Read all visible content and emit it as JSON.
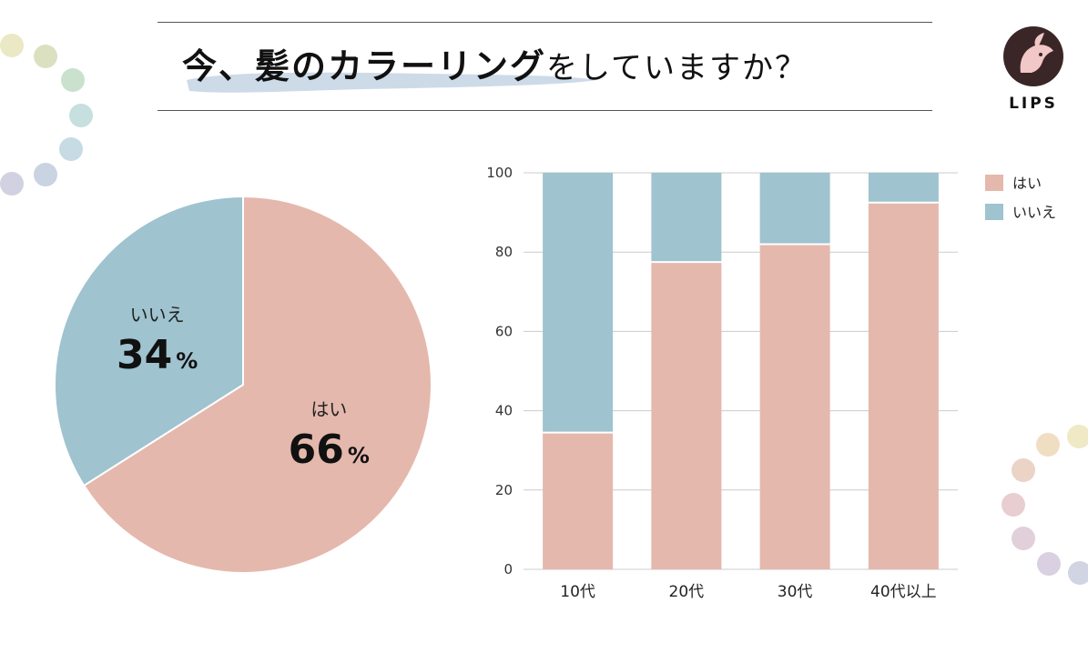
{
  "header": {
    "title_bold": "今、髪のカラーリング",
    "title_rest": "をしていますか？",
    "logo_text": "LIPS"
  },
  "colors": {
    "yes": "#e5b8ad",
    "no": "#9fc3cf",
    "grid": "#cccccc",
    "brush": "#c8d6e6"
  },
  "chart_data": [
    {
      "type": "pie",
      "slices": [
        {
          "label": "はい",
          "value": 66,
          "display": "66"
        },
        {
          "label": "いいえ",
          "value": 34,
          "display": "34"
        }
      ],
      "unit": "%"
    },
    {
      "type": "bar",
      "stacked": true,
      "categories": [
        "10代",
        "20代",
        "30代",
        "40代以上"
      ],
      "series": [
        {
          "name": "はい",
          "values": [
            34.5,
            77.5,
            82,
            92.5
          ]
        },
        {
          "name": "いいえ",
          "values": [
            65.5,
            22.5,
            18,
            7.5
          ]
        }
      ],
      "ylim": [
        0,
        100
      ],
      "yticks": [
        0,
        20,
        40,
        60,
        80,
        100
      ],
      "grid": true,
      "legend": "top-right"
    }
  ]
}
